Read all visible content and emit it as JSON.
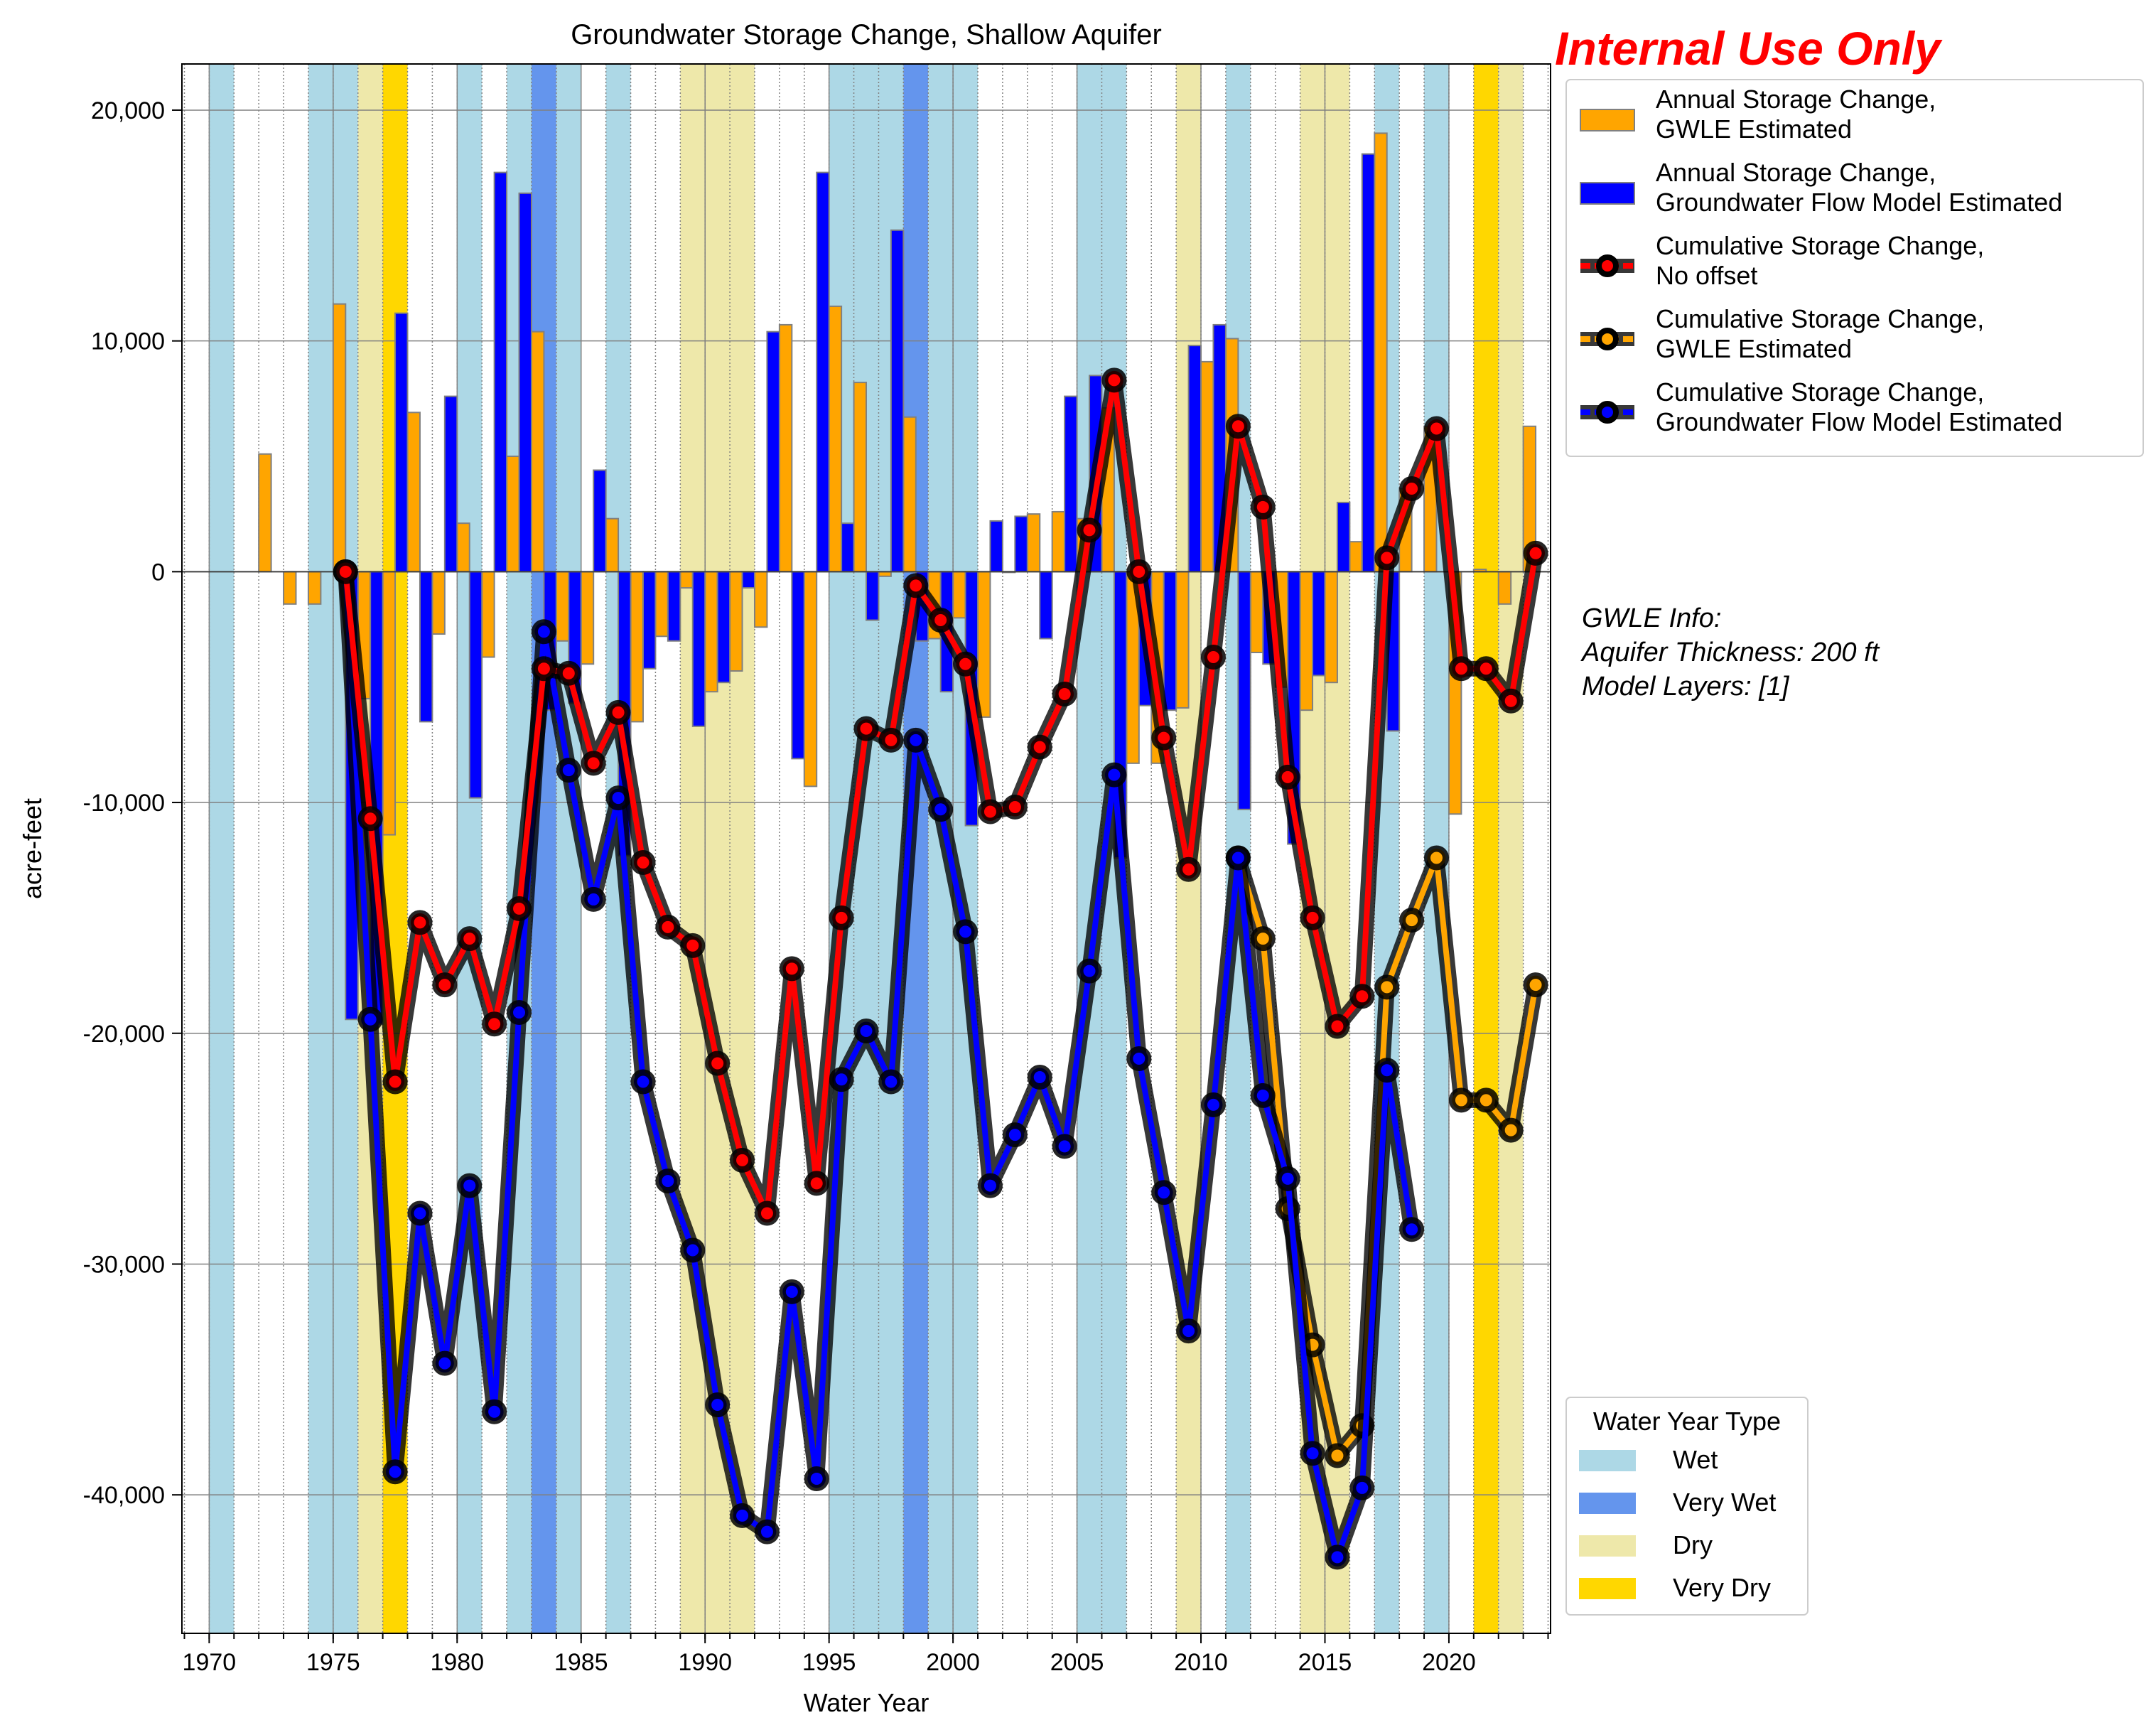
{
  "chart_data": {
    "type": "bar",
    "title": "Groundwater Storage Change, Shallow Aquifer",
    "xlabel": "Water Year",
    "ylabel": "acre-feet",
    "xlim": [
      1968.9,
      2024.1
    ],
    "ylim": [
      -46000,
      22000
    ],
    "x_ticks": [
      1970,
      1975,
      1980,
      1985,
      1990,
      1995,
      2000,
      2005,
      2010,
      2015,
      2020
    ],
    "x_tick_labels": [
      "1970",
      "1975",
      "1980",
      "1985",
      "1990",
      "1995",
      "2000",
      "2005",
      "2010",
      "2015",
      "2020"
    ],
    "y_ticks": [
      -40000,
      -30000,
      -20000,
      -10000,
      0,
      10000,
      20000
    ],
    "y_tick_labels": [
      "-40,000",
      "-30,000",
      "-20,000",
      "-10,000",
      "0",
      "10,000",
      "20,000"
    ],
    "grid": true,
    "water_year_types": {
      "legend_title": "Water Year Type",
      "legend_position": "bottom-right",
      "categories": [
        {
          "label": "Wet",
          "color": "#add8e6"
        },
        {
          "label": "Very Wet",
          "color": "#6495ed"
        },
        {
          "label": "Dry",
          "color": "#eee8aa"
        },
        {
          "label": "Very Dry",
          "color": "#ffd700"
        }
      ],
      "years": [
        {
          "year": 1970,
          "type": "Wet"
        },
        {
          "year": 1974,
          "type": "Wet"
        },
        {
          "year": 1975,
          "type": "Wet"
        },
        {
          "year": 1976,
          "type": "Dry"
        },
        {
          "year": 1977,
          "type": "Very Dry"
        },
        {
          "year": 1980,
          "type": "Wet"
        },
        {
          "year": 1982,
          "type": "Wet"
        },
        {
          "year": 1983,
          "type": "Very Wet"
        },
        {
          "year": 1984,
          "type": "Wet"
        },
        {
          "year": 1986,
          "type": "Wet"
        },
        {
          "year": 1989,
          "type": "Dry"
        },
        {
          "year": 1990,
          "type": "Dry"
        },
        {
          "year": 1991,
          "type": "Dry"
        },
        {
          "year": 1995,
          "type": "Wet"
        },
        {
          "year": 1996,
          "type": "Wet"
        },
        {
          "year": 1997,
          "type": "Wet"
        },
        {
          "year": 1998,
          "type": "Very Wet"
        },
        {
          "year": 1999,
          "type": "Wet"
        },
        {
          "year": 2000,
          "type": "Wet"
        },
        {
          "year": 2005,
          "type": "Wet"
        },
        {
          "year": 2006,
          "type": "Wet"
        },
        {
          "year": 2009,
          "type": "Dry"
        },
        {
          "year": 2011,
          "type": "Wet"
        },
        {
          "year": 2014,
          "type": "Dry"
        },
        {
          "year": 2015,
          "type": "Dry"
        },
        {
          "year": 2017,
          "type": "Wet"
        },
        {
          "year": 2019,
          "type": "Wet"
        },
        {
          "year": 2021,
          "type": "Very Dry"
        },
        {
          "year": 2022,
          "type": "Dry"
        }
      ]
    },
    "legend_position": "top-right",
    "series": [
      {
        "name": "Annual Storage Change,\nGWLE Estimated",
        "type": "bar",
        "color": "#ffa500",
        "x": [
          1972,
          1973,
          1974,
          1975,
          1976,
          1977,
          1978,
          1979,
          1980,
          1981,
          1982,
          1983,
          1984,
          1985,
          1986,
          1987,
          1988,
          1989,
          1990,
          1991,
          1992,
          1993,
          1994,
          1995,
          1996,
          1997,
          1998,
          1999,
          2000,
          2001,
          2002,
          2003,
          2004,
          2005,
          2006,
          2007,
          2008,
          2009,
          2010,
          2011,
          2012,
          2013,
          2014,
          2015,
          2016,
          2017,
          2018,
          2019,
          2020,
          2021,
          2022,
          2023
        ],
        "values": [
          5100,
          -1400,
          -1400,
          11600,
          -5500,
          -11400,
          6900,
          -2700,
          2100,
          -3700,
          5000,
          10400,
          -3000,
          -4000,
          2300,
          -6500,
          -2800,
          -700,
          -5200,
          -4300,
          -2400,
          10700,
          -9300,
          11500,
          8200,
          -200,
          6700,
          -2900,
          -2000,
          -6300,
          0,
          2500,
          2600,
          2300,
          7100,
          -8300,
          -8300,
          -5900,
          9100,
          10100,
          -3500,
          -5000,
          -6000,
          -4800,
          1300,
          19000,
          3600,
          6300,
          -10500,
          100,
          -1400,
          6300
        ]
      },
      {
        "name": "Annual Storage Change,\nGroundwater Flow Model Estimated",
        "type": "bar",
        "color": "#0000ff",
        "x": [
          1976,
          1977,
          1978,
          1979,
          1980,
          1981,
          1982,
          1983,
          1984,
          1985,
          1986,
          1987,
          1988,
          1989,
          1990,
          1991,
          1992,
          1993,
          1994,
          1995,
          1996,
          1997,
          1998,
          1999,
          2000,
          2001,
          2002,
          2003,
          2004,
          2005,
          2006,
          2007,
          2008,
          2009,
          2010,
          2011,
          2012,
          2013,
          2014,
          2015,
          2016,
          2017,
          2018
        ],
        "values": [
          -19400,
          -19600,
          11200,
          -6500,
          7600,
          -9800,
          17300,
          16400,
          -6000,
          -5700,
          4400,
          -12300,
          -4200,
          -3000,
          -6700,
          -4800,
          -700,
          10400,
          -8100,
          17300,
          2100,
          -2100,
          14800,
          -3000,
          -5200,
          -11000,
          2200,
          2400,
          -2900,
          7600,
          8500,
          -12400,
          -5800,
          -6000,
          9800,
          10700,
          -10300,
          -4000,
          -11800,
          -4500,
          3000,
          18100,
          -6900
        ]
      },
      {
        "name": "Cumulative Storage Change,\nNo offset",
        "type": "line",
        "color": "#ff0000",
        "x": [
          1975,
          1976,
          1977,
          1978,
          1979,
          1980,
          1981,
          1982,
          1983,
          1984,
          1985,
          1986,
          1987,
          1988,
          1989,
          1990,
          1991,
          1992,
          1993,
          1994,
          1995,
          1996,
          1997,
          1998,
          1999,
          2000,
          2001,
          2002,
          2003,
          2004,
          2005,
          2006,
          2007,
          2008,
          2009,
          2010,
          2011,
          2012,
          2013,
          2014,
          2015,
          2016,
          2017,
          2018,
          2019,
          2020,
          2021,
          2022,
          2023
        ],
        "values": [
          0,
          -10700,
          -22100,
          -15200,
          -17900,
          -15900,
          -19600,
          -14600,
          -4200,
          -4400,
          -8300,
          -6100,
          -12600,
          -15400,
          -16200,
          -21300,
          -25500,
          -27800,
          -17200,
          -26500,
          -15000,
          -6800,
          -7300,
          -600,
          -2100,
          -4000,
          -10400,
          -10200,
          -7600,
          -5300,
          1800,
          8300,
          0,
          -7200,
          -12900,
          -3700,
          6300,
          2800,
          -8900,
          -15000,
          -19700,
          -18400,
          600,
          3600,
          6200,
          -4200,
          -4200,
          -5600,
          800
        ]
      },
      {
        "name": "Cumulative Storage Change,\nGWLE Estimated",
        "type": "line",
        "color": "#ffa500",
        "x": [
          2011,
          2012,
          2013,
          2014,
          2015,
          2016,
          2017,
          2018,
          2019,
          2020,
          2021,
          2022,
          2023
        ],
        "values": [
          -12400,
          -15900,
          -27600,
          -33500,
          -38300,
          -37000,
          -18000,
          -15100,
          -12400,
          -22900,
          -22900,
          -24200,
          -17900
        ]
      },
      {
        "name": "Cumulative Storage Change,\nGroundwater Flow Model Estimated",
        "type": "line",
        "color": "#0000ff",
        "x": [
          1975,
          1976,
          1977,
          1978,
          1979,
          1980,
          1981,
          1982,
          1983,
          1984,
          1985,
          1986,
          1987,
          1988,
          1989,
          1990,
          1991,
          1992,
          1993,
          1994,
          1995,
          1996,
          1997,
          1998,
          1999,
          2000,
          2001,
          2002,
          2003,
          2004,
          2005,
          2006,
          2007,
          2008,
          2009,
          2010,
          2011,
          2012,
          2013,
          2014,
          2015,
          2016,
          2017,
          2018
        ],
        "values": [
          0,
          -19400,
          -39000,
          -27800,
          -34300,
          -26600,
          -36400,
          -19100,
          -2600,
          -8600,
          -14200,
          -9800,
          -22100,
          -26400,
          -29400,
          -36100,
          -40900,
          -41600,
          -31200,
          -39300,
          -22000,
          -19900,
          -22100,
          -7300,
          -10300,
          -15600,
          -26600,
          -24400,
          -21900,
          -24900,
          -17300,
          -8800,
          -21100,
          -26900,
          -32900,
          -23100,
          -12400,
          -22700,
          -26300,
          -38200,
          -42700,
          -39700,
          -21600,
          -28500
        ]
      }
    ]
  },
  "watermark": "Internal Use Only",
  "gwle_info": {
    "heading": "GWLE Info:",
    "thickness": "Aquifer Thickness: 200 ft",
    "layers": "Model Layers: [1]"
  }
}
